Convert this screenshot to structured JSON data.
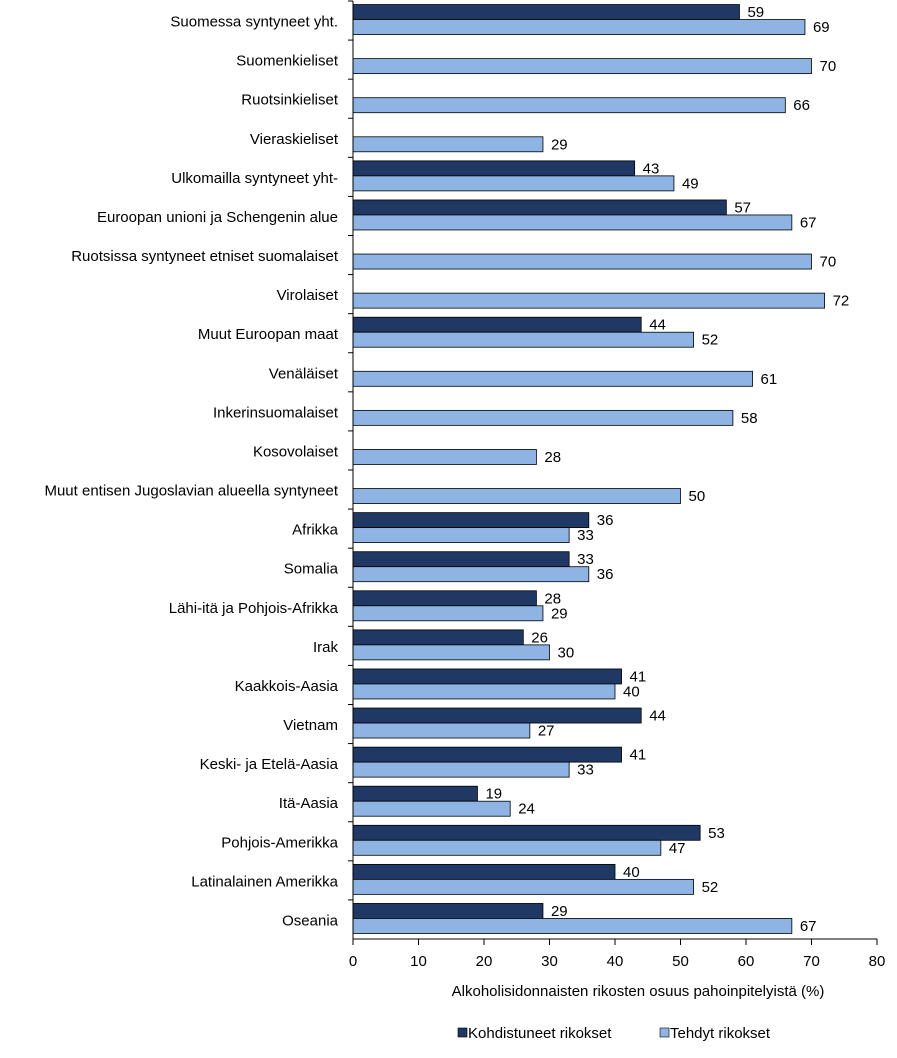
{
  "chart_data": {
    "type": "bar",
    "orientation": "horizontal",
    "xlabel": "Alkoholisidonnaisten  rikosten osuus pahoinpitelyistä (%)",
    "categories": [
      "Suomessa syntyneet yht.",
      "Suomenkieliset",
      "Ruotsinkieliset",
      "Vieraskieliset",
      "Ulkomailla syntyneet yht-",
      "Euroopan unioni ja Schengenin alue",
      "Ruotsissa syntyneet etniset suomalaiset",
      "Virolaiset",
      "Muut Euroopan maat",
      "Venäläiset",
      "Inkerinsuomalaiset",
      "Kosovolaiset",
      "Muut entisen Jugoslavian alueella syntyneet",
      "Afrikka",
      "Somalia",
      "Lähi-itä ja Pohjois-Afrikka",
      "Irak",
      "Kaakkois-Aasia",
      "Vietnam",
      "Keski- ja Etelä-Aasia",
      "Itä-Aasia",
      "Pohjois-Amerikka",
      "Latinalainen Amerikka",
      "Oseania"
    ],
    "series": [
      {
        "name": "Kohdistuneet rikokset",
        "color": "#1f3864",
        "values": [
          59,
          null,
          null,
          null,
          43,
          57,
          null,
          null,
          44,
          null,
          null,
          null,
          null,
          36,
          33,
          28,
          26,
          41,
          44,
          41,
          19,
          53,
          40,
          29
        ]
      },
      {
        "name": "Tehdyt rikokset",
        "color": "#8eb4e3",
        "values": [
          69,
          70,
          66,
          29,
          49,
          67,
          70,
          72,
          52,
          61,
          58,
          28,
          50,
          33,
          36,
          29,
          30,
          40,
          27,
          33,
          24,
          47,
          52,
          67
        ]
      }
    ],
    "xlim": [
      0,
      80
    ],
    "xticks": [
      0,
      10,
      20,
      30,
      40,
      50,
      60,
      70,
      80
    ],
    "grid": false,
    "legend": "bottom"
  }
}
